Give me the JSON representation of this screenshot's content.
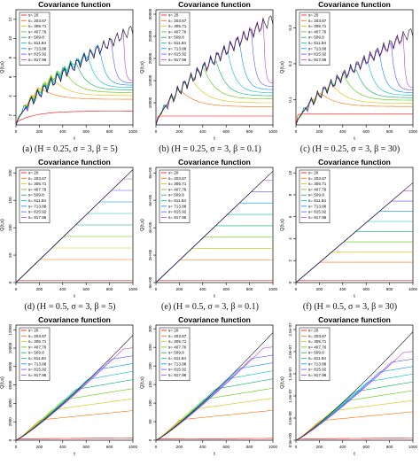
{
  "legend_entries": [
    "s= 20",
    "s= 203.67",
    "s= 305.71",
    "s= 407.76",
    "s= 509.8",
    "s= 611.84",
    "s= 713.88",
    "s= 815.92",
    "s= 917.96"
  ],
  "series_colors": [
    "#FF0000",
    "#FF6A00",
    "#D4C200",
    "#58C800",
    "#00B060",
    "#00C0C0",
    "#0090FF",
    "#5A50FF",
    "#C040E0",
    "#111111"
  ],
  "chart_data": [
    {
      "type": "line",
      "title": "Covariance function",
      "xlabel": "t",
      "ylabel": "Q(t,s)",
      "caption": "(a) (H = 0.25, σ = 3, β = 5)",
      "shape": "fractional",
      "H": 0.25,
      "xlim": [
        0,
        1000
      ],
      "ylim": [
        1,
        13
      ],
      "x_ticks": [
        "0",
        "200",
        "400",
        "600",
        "800",
        "1000"
      ],
      "y_ticks": [
        "2",
        "4",
        "6",
        "8",
        "10",
        "12"
      ],
      "tail_end": 3,
      "series": [
        {
          "name": "s= 20",
          "s": 20,
          "peak": 1.4
        },
        {
          "name": "s= 203.67",
          "s": 203.67,
          "peak": 4.9
        },
        {
          "name": "s= 305.71",
          "s": 305.71,
          "peak": 6.0
        },
        {
          "name": "s= 407.76",
          "s": 407.76,
          "peak": 6.9
        },
        {
          "name": "s= 509.8",
          "s": 509.8,
          "peak": 7.7
        },
        {
          "name": "s= 611.84",
          "s": 611.84,
          "peak": 8.4
        },
        {
          "name": "s= 713.88",
          "s": 713.88,
          "peak": 9.1
        },
        {
          "name": "s= 815.92",
          "s": 815.92,
          "peak": 9.7
        },
        {
          "name": "s= 917.96",
          "s": 917.96,
          "peak": 10.4
        },
        {
          "name": "",
          "s": 1000,
          "peak": 11.0
        }
      ]
    },
    {
      "type": "line",
      "title": "Covariance function",
      "xlabel": "t",
      "ylabel": "Q(t,s)",
      "caption": "(b) (H = 0.25, σ = 3, β = 0.1)",
      "shape": "fractional",
      "H": 0.25,
      "xlim": [
        0,
        1000
      ],
      "ylim": [
        5000,
        31000
      ],
      "x_ticks": [
        "0",
        "200",
        "400",
        "600",
        "800",
        "1000"
      ],
      "y_ticks": [
        "10000",
        "15000",
        "20000",
        "25000",
        "30000"
      ],
      "tail_end": 7000,
      "series": [
        {
          "name": "s= 20",
          "s": 20,
          "peak": 7000
        },
        {
          "name": "s= 203.67",
          "s": 203.67,
          "peak": 13000
        },
        {
          "name": "s= 305.71",
          "s": 305.71,
          "peak": 15500
        },
        {
          "name": "s= 407.76",
          "s": 407.76,
          "peak": 18000
        },
        {
          "name": "s= 509.8",
          "s": 509.8,
          "peak": 20000
        },
        {
          "name": "s= 611.84",
          "s": 611.84,
          "peak": 22000
        },
        {
          "name": "s= 713.88",
          "s": 713.88,
          "peak": 24000
        },
        {
          "name": "s= 815.92",
          "s": 815.92,
          "peak": 26000
        },
        {
          "name": "s= 917.96",
          "s": 917.96,
          "peak": 28000
        },
        {
          "name": "",
          "s": 1000,
          "peak": 29000
        }
      ]
    },
    {
      "type": "line",
      "title": "Covariance function",
      "xlabel": "t",
      "ylabel": "Q(t,s)",
      "caption": "(c) (H = 0.25, σ = 3, β = 30)",
      "shape": "fractional",
      "H": 0.25,
      "xlim": [
        0,
        1000
      ],
      "ylim": [
        0.03,
        0.35
      ],
      "x_ticks": [
        "0",
        "200",
        "400",
        "600",
        "800",
        "1000"
      ],
      "y_ticks": [
        "0.1",
        "0.2",
        "0.3"
      ],
      "tail_end": 0.06,
      "series": [
        {
          "name": "s= 20",
          "s": 20,
          "peak": 0.06
        },
        {
          "name": "s= 203.67",
          "s": 203.67,
          "peak": 0.12
        },
        {
          "name": "s= 305.71",
          "s": 305.71,
          "peak": 0.145
        },
        {
          "name": "s= 407.76",
          "s": 407.76,
          "peak": 0.17
        },
        {
          "name": "s= 509.8",
          "s": 509.8,
          "peak": 0.19
        },
        {
          "name": "s= 611.84",
          "s": 611.84,
          "peak": 0.21
        },
        {
          "name": "s= 713.88",
          "s": 713.88,
          "peak": 0.23
        },
        {
          "name": "s= 815.92",
          "s": 815.92,
          "peak": 0.25
        },
        {
          "name": "s= 917.96",
          "s": 917.96,
          "peak": 0.27
        },
        {
          "name": "",
          "s": 1000,
          "peak": 0.29
        }
      ]
    },
    {
      "type": "line",
      "title": "Covariance function",
      "xlabel": "t",
      "ylabel": "Q(t,s)",
      "caption": "(d) (H = 0.5, σ = 3, β = 5)",
      "shape": "min",
      "xlim": [
        0,
        1000
      ],
      "ylim": [
        0,
        210
      ],
      "x_ticks": [
        "0",
        "200",
        "400",
        "600",
        "800",
        "1000"
      ],
      "y_ticks": [
        "0",
        "50",
        "100",
        "150",
        "200"
      ],
      "series": [
        {
          "name": "s= 20",
          "s": 20,
          "peak": 4
        },
        {
          "name": "s= 203.67",
          "s": 203.67,
          "peak": 42
        },
        {
          "name": "s= 305.71",
          "s": 305.71,
          "peak": 63
        },
        {
          "name": "s= 407.76",
          "s": 407.76,
          "peak": 84
        },
        {
          "name": "s= 509.8",
          "s": 509.8,
          "peak": 105
        },
        {
          "name": "s= 611.84",
          "s": 611.84,
          "peak": 126
        },
        {
          "name": "s= 713.88",
          "s": 713.88,
          "peak": 147
        },
        {
          "name": "s= 815.92",
          "s": 815.92,
          "peak": 168
        },
        {
          "name": "s= 917.96",
          "s": 917.96,
          "peak": 189
        },
        {
          "name": "",
          "s": 1000,
          "peak": 206
        }
      ]
    },
    {
      "type": "line",
      "title": "Covariance function",
      "xlabel": "t",
      "ylabel": "Q(t,s)",
      "caption": "(e) (H = 0.5, σ = 3, β = 0.1)",
      "shape": "min",
      "xlim": [
        0,
        1000
      ],
      "ylim": [
        0,
        840000
      ],
      "x_ticks": [
        "0",
        "200",
        "400",
        "600",
        "800",
        "1000"
      ],
      "y_ticks": [
        "0e+00",
        "2e+05",
        "4e+05",
        "6e+05",
        "8e+05"
      ],
      "series": [
        {
          "name": "s= 20",
          "s": 20,
          "peak": 16000
        },
        {
          "name": "s= 203.67",
          "s": 203.67,
          "peak": 165000
        },
        {
          "name": "s= 305.71",
          "s": 305.71,
          "peak": 248000
        },
        {
          "name": "s= 407.76",
          "s": 407.76,
          "peak": 331000
        },
        {
          "name": "s= 509.8",
          "s": 509.8,
          "peak": 414000
        },
        {
          "name": "s= 611.84",
          "s": 611.84,
          "peak": 497000
        },
        {
          "name": "s= 713.88",
          "s": 713.88,
          "peak": 580000
        },
        {
          "name": "s= 815.92",
          "s": 815.92,
          "peak": 663000
        },
        {
          "name": "s= 917.96",
          "s": 917.96,
          "peak": 746000
        },
        {
          "name": "",
          "s": 1000,
          "peak": 812000
        }
      ]
    },
    {
      "type": "line",
      "title": "Covariance function",
      "xlabel": "t",
      "ylabel": "Q(t,s)",
      "caption": "(f) (H = 0.5, σ = 3, β = 30)",
      "shape": "min",
      "xlim": [
        0,
        1000
      ],
      "ylim": [
        0,
        10.5
      ],
      "x_ticks": [
        "0",
        "200",
        "400",
        "600",
        "800",
        "1000"
      ],
      "y_ticks": [
        "0",
        "2",
        "4",
        "6",
        "8",
        "10"
      ],
      "series": [
        {
          "name": "s= 20",
          "s": 20,
          "peak": 0.2
        },
        {
          "name": "s= 203.67",
          "s": 203.67,
          "peak": 1.85
        },
        {
          "name": "s= 305.71",
          "s": 305.71,
          "peak": 2.78
        },
        {
          "name": "s= 407.76",
          "s": 407.76,
          "peak": 3.71
        },
        {
          "name": "s= 509.8",
          "s": 509.8,
          "peak": 4.64
        },
        {
          "name": "s= 611.84",
          "s": 611.84,
          "peak": 5.57
        },
        {
          "name": "s= 713.88",
          "s": 713.88,
          "peak": 6.49
        },
        {
          "name": "s= 815.92",
          "s": 815.92,
          "peak": 7.42
        },
        {
          "name": "s= 917.96",
          "s": 917.96,
          "peak": 8.35
        },
        {
          "name": "",
          "s": 1000,
          "peak": 9.1
        }
      ]
    },
    {
      "type": "line",
      "title": "Covariance function",
      "xlabel": "t",
      "ylabel": "Q(t,s)",
      "caption": "",
      "shape": "fractional",
      "H": 0.75,
      "xlim": [
        0,
        1000
      ],
      "ylim": [
        0,
        12500
      ],
      "x_ticks": [
        "0",
        "200",
        "400",
        "600",
        "800",
        "1000"
      ],
      "y_ticks": [
        "0",
        "2000",
        "4000",
        "6000",
        "8000",
        "10000",
        "12000"
      ],
      "series": [
        {
          "name": "s= 20",
          "s": 20,
          "peak": 150
        },
        {
          "name": "s= 203.67",
          "s": 203.67,
          "peak": 2200
        },
        {
          "name": "s= 305.71",
          "s": 305.71,
          "peak": 3300
        },
        {
          "name": "s= 407.76",
          "s": 407.76,
          "peak": 4400
        },
        {
          "name": "s= 509.8",
          "s": 509.8,
          "peak": 5500
        },
        {
          "name": "s= 611.84",
          "s": 611.84,
          "peak": 6600
        },
        {
          "name": "s= 713.88",
          "s": 713.88,
          "peak": 7700
        },
        {
          "name": "s= 815.92",
          "s": 815.92,
          "peak": 8800
        },
        {
          "name": "s= 917.96",
          "s": 917.96,
          "peak": 9900
        },
        {
          "name": "",
          "s": 1000,
          "peak": 11400
        }
      ]
    },
    {
      "type": "line",
      "title": "Covariance function",
      "xlabel": "t",
      "ylabel": "Q(t,s)",
      "caption": "",
      "shape": "fractional",
      "H": 0.75,
      "xlim": [
        0,
        1000
      ],
      "ylim": [
        0,
        310
      ],
      "x_ticks": [
        "0",
        "200",
        "400",
        "600",
        "800",
        "1000"
      ],
      "y_ticks": [
        "0",
        "50",
        "100",
        "150",
        "200",
        "250",
        "300"
      ],
      "series": [
        {
          "name": "s= 20",
          "s": 20,
          "peak": 3
        },
        {
          "name": "s= 203.67",
          "s": 203.67,
          "peak": 55
        },
        {
          "name": "s= 305.71",
          "s": 305.71,
          "peak": 83
        },
        {
          "name": "s= 407.76",
          "s": 407.76,
          "peak": 110
        },
        {
          "name": "s= 509.8",
          "s": 509.8,
          "peak": 138
        },
        {
          "name": "s= 611.84",
          "s": 611.84,
          "peak": 165
        },
        {
          "name": "s= 713.88",
          "s": 713.88,
          "peak": 193
        },
        {
          "name": "s= 815.92",
          "s": 815.92,
          "peak": 220
        },
        {
          "name": "s= 917.96",
          "s": 917.96,
          "peak": 248
        },
        {
          "name": "",
          "s": 1000,
          "peak": 290
        }
      ]
    },
    {
      "type": "line",
      "title": "Covariance function",
      "xlabel": "t",
      "ylabel": "Q(t,s)",
      "caption": "",
      "shape": "fractional",
      "H": 0.75,
      "xlim": [
        0,
        1000
      ],
      "ylim": [
        0,
        2.6e-07
      ],
      "x_ticks": [
        "0",
        "200",
        "400",
        "600",
        "800",
        "1000"
      ],
      "y_ticks": [
        "0.0e+00",
        "5.0e-08",
        "1.0e-07",
        "1.5e-07",
        "2.0e-07",
        "2.5e-07"
      ],
      "series": [
        {
          "name": "s= 20",
          "s": 20,
          "peak": 3e-09
        },
        {
          "name": "s= 203.67",
          "s": 203.67,
          "peak": 4.4e-08
        },
        {
          "name": "s= 305.71",
          "s": 305.71,
          "peak": 6.6e-08
        },
        {
          "name": "s= 407.76",
          "s": 407.76,
          "peak": 8.8e-08
        },
        {
          "name": "s= 509.8",
          "s": 509.8,
          "peak": 1.1e-07
        },
        {
          "name": "s= 611.84",
          "s": 611.84,
          "peak": 1.32e-07
        },
        {
          "name": "s= 713.88",
          "s": 713.88,
          "peak": 1.54e-07
        },
        {
          "name": "s= 815.92",
          "s": 815.92,
          "peak": 1.76e-07
        },
        {
          "name": "s= 917.96",
          "s": 917.96,
          "peak": 1.98e-07
        },
        {
          "name": "",
          "s": 1000,
          "peak": 2.45e-07
        }
      ]
    }
  ]
}
